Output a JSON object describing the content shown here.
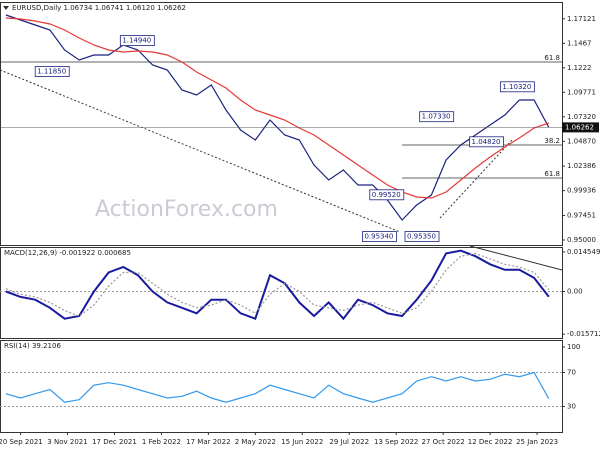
{
  "chart_data": [
    {
      "type": "line",
      "title": "EURUSD,Daily 1.06734 1.06741 1.06120 1.06262",
      "watermark": "ActionForex.com",
      "x": [
        -10,
        0,
        10,
        20,
        30,
        40,
        50,
        60,
        70,
        80,
        90,
        100,
        110,
        120,
        130,
        140,
        150,
        160,
        170,
        180,
        190,
        200,
        210,
        220,
        230,
        240,
        250,
        260,
        270,
        280,
        290,
        300,
        310,
        320,
        330,
        340,
        350,
        360
      ],
      "xlim": [
        -14,
        369
      ],
      "series": [
        {
          "color": "#1a237e",
          "values": [
            1.175,
            1.17,
            1.165,
            1.16,
            1.14,
            1.13,
            1.135,
            1.135,
            1.145,
            1.14,
            1.125,
            1.12,
            1.1,
            1.095,
            1.105,
            1.08,
            1.06,
            1.05,
            1.07,
            1.055,
            1.05,
            1.025,
            1.01,
            1.02,
            1.005,
            1.005,
            0.99,
            0.97,
            0.985,
            0.995,
            1.03,
            1.045,
            1.055,
            1.065,
            1.075,
            1.09,
            1.09,
            1.06262
          ]
        },
        {
          "color": "#e53935",
          "values": [
            1.172,
            1.171,
            1.169,
            1.166,
            1.16,
            1.152,
            1.145,
            1.14,
            1.138,
            1.139,
            1.138,
            1.135,
            1.128,
            1.118,
            1.11,
            1.102,
            1.09,
            1.08,
            1.075,
            1.07,
            1.062,
            1.055,
            1.045,
            1.035,
            1.025,
            1.015,
            1.005,
            0.998,
            0.993,
            0.992,
            0.998,
            1.01,
            1.022,
            1.033,
            1.043,
            1.052,
            1.062,
            1.067
          ]
        }
      ],
      "ylim": [
        0.945,
        1.187
      ],
      "yticks": [
        1.17121,
        1.1467,
        1.1222,
        1.09771,
        {
          "value": 1.0732,
          "label": "1.07320"
        },
        {
          "value": 1.0487,
          "label": "1.04870"
        },
        1.02386,
        0.99936,
        0.97451,
        {
          "value": 0.95,
          "label": "0.95000"
        }
      ],
      "yticks_labels_note_free": true,
      "annotations": [
        {
          "x": 68,
          "value": 1.1494,
          "label": "1.14940"
        },
        {
          "x": 10,
          "value": 1.1185,
          "label": "1.11850"
        },
        {
          "x": 327,
          "value": 1.1032,
          "label": "1.10320"
        },
        {
          "x": 272,
          "value": 1.0733,
          "label": "1.07330"
        },
        {
          "x": 306,
          "value": 1.0482,
          "label": "1.04820"
        },
        {
          "x": 238,
          "value": 0.9952,
          "label": "0.99520"
        },
        {
          "x": 262,
          "value": 0.9535,
          "label": "0.95350"
        },
        {
          "x": 233,
          "value": 0.9534,
          "label": "0.95340"
        }
      ],
      "levels": [
        {
          "value": 1.128,
          "label": "61.8"
        },
        {
          "value": 1.045,
          "label": "38.2",
          "x_start": 260
        },
        {
          "value": 1.012,
          "label": "61.8",
          "x_start": 260
        }
      ],
      "last_price": 1.06262
    },
    {
      "type": "line",
      "title": "MACD(12,26,9) -0.001922 0.000685",
      "x": [
        -10,
        0,
        10,
        20,
        30,
        40,
        50,
        60,
        70,
        80,
        90,
        100,
        110,
        120,
        130,
        140,
        150,
        160,
        170,
        180,
        190,
        200,
        210,
        220,
        230,
        240,
        250,
        260,
        270,
        280,
        290,
        300,
        310,
        320,
        330,
        340,
        350,
        360
      ],
      "xlim": [
        -14,
        369
      ],
      "series": [
        {
          "color": "#1a1aa0",
          "values": [
            0.0,
            -0.002,
            -0.003,
            -0.006,
            -0.01,
            -0.009,
            0.0,
            0.007,
            0.009,
            0.006,
            0.0,
            -0.004,
            -0.006,
            -0.008,
            -0.003,
            -0.003,
            -0.008,
            -0.01,
            0.006,
            0.003,
            -0.004,
            -0.009,
            -0.004,
            -0.01,
            -0.003,
            -0.005,
            -0.008,
            -0.009,
            -0.003,
            0.004,
            0.014,
            0.015,
            0.013,
            0.01,
            0.008,
            0.008,
            0.005,
            -0.001922
          ]
        },
        {
          "color": "#999999",
          "dashed": true,
          "values": [
            0.001,
            -0.001,
            -0.002,
            -0.004,
            -0.007,
            -0.009,
            -0.005,
            0.002,
            0.007,
            0.007,
            0.003,
            -0.001,
            -0.004,
            -0.006,
            -0.005,
            -0.003,
            -0.005,
            -0.008,
            -0.001,
            0.003,
            0.0,
            -0.005,
            -0.006,
            -0.007,
            -0.005,
            -0.004,
            -0.006,
            -0.008,
            -0.006,
            0.0,
            0.008,
            0.013,
            0.014,
            0.012,
            0.01,
            0.009,
            0.007,
            0.000685
          ]
        }
      ],
      "ylim": [
        -0.0171,
        0.016
      ],
      "yticks": [
        0.014549,
        {
          "value": 0,
          "label": "0.00"
        },
        -0.015712
      ]
    },
    {
      "type": "line",
      "title": "RSI(14) 39.2106",
      "x": [
        -10,
        0,
        10,
        20,
        30,
        40,
        50,
        60,
        70,
        80,
        90,
        100,
        110,
        120,
        130,
        140,
        150,
        160,
        170,
        180,
        190,
        200,
        210,
        220,
        230,
        240,
        250,
        260,
        270,
        280,
        290,
        300,
        310,
        320,
        330,
        340,
        350,
        360
      ],
      "xlim": [
        -14,
        369
      ],
      "series": [
        {
          "color": "#3399ee",
          "values": [
            45,
            40,
            45,
            50,
            35,
            38,
            55,
            58,
            55,
            50,
            45,
            40,
            42,
            48,
            40,
            35,
            40,
            45,
            55,
            50,
            45,
            40,
            55,
            45,
            40,
            35,
            40,
            45,
            60,
            65,
            60,
            65,
            60,
            62,
            68,
            65,
            70,
            39.2106
          ]
        }
      ],
      "ylim": [
        0,
        107
      ],
      "yticks": [
        100,
        70,
        30
      ],
      "xticks": [
        {
          "value": 0,
          "label": "20 Sep 2021"
        },
        {
          "value": 32,
          "label": "3 Nov 2021"
        },
        {
          "value": 64,
          "label": "17 Dec 2021"
        },
        {
          "value": 96,
          "label": "1 Feb 2022"
        },
        {
          "value": 128,
          "label": "17 Mar 2022"
        },
        {
          "value": 160,
          "label": "2 May 2022"
        },
        {
          "value": 192,
          "label": "15 Jun 2022"
        },
        {
          "value": 224,
          "label": "29 Jul 2022"
        },
        {
          "value": 256,
          "label": "13 Sep 2022"
        },
        {
          "value": 288,
          "label": "27 Oct 2022"
        },
        {
          "value": 320,
          "label": "12 Dec 2022"
        },
        {
          "value": 352,
          "label": "25 Jan 2023"
        }
      ]
    }
  ]
}
